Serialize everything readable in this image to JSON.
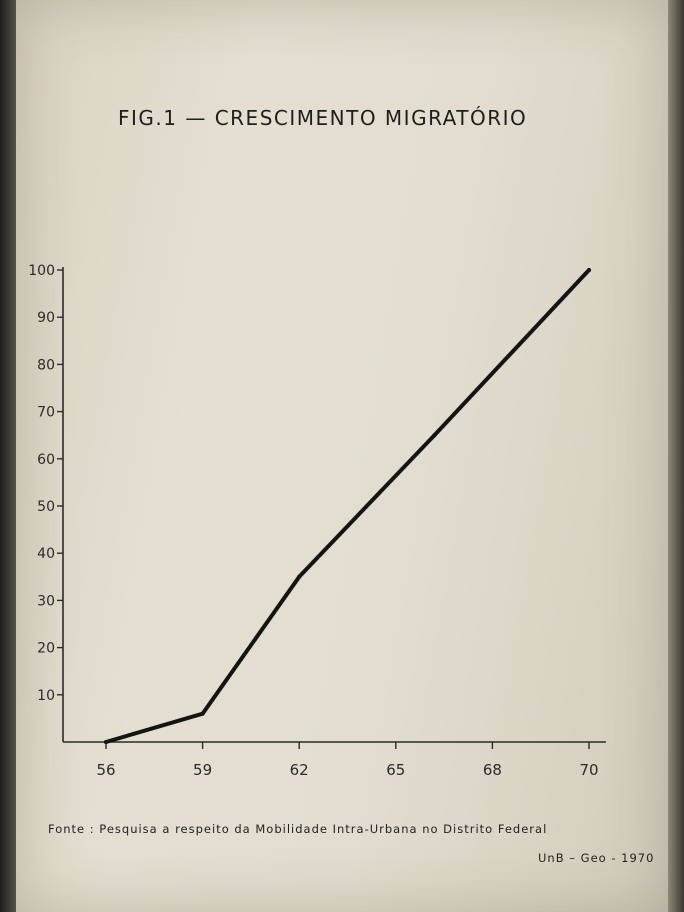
{
  "figure": {
    "title": "FIG.1 — CRESCIMENTO MIGRATÓRIO",
    "source": "Fonte : Pesquisa a respeito da Mobilidade Intra-Urbana no Distrito Federal",
    "credit": "UnB – Geo - 1970"
  },
  "chart_data": {
    "type": "line",
    "title": "FIG.1 — CRESCIMENTO MIGRATÓRIO",
    "xlabel": "",
    "ylabel": "",
    "x_ticks": [
      "56",
      "59",
      "62",
      "65",
      "68",
      "70"
    ],
    "y_ticks": [
      "10",
      "20",
      "30",
      "40",
      "50",
      "60",
      "70",
      "80",
      "90",
      "100"
    ],
    "xlim": [
      0,
      5
    ],
    "ylim": [
      0,
      100
    ],
    "grid": false,
    "series": [
      {
        "x": [
          0,
          1,
          2,
          3.4,
          5
        ],
        "y": [
          0,
          6,
          35,
          65,
          100
        ]
      }
    ]
  }
}
